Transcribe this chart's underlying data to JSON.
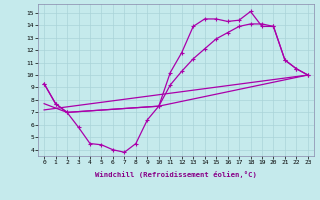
{
  "xlabel": "Windchill (Refroidissement éolien,°C)",
  "bg_color": "#c5eaec",
  "grid_color": "#aad4d8",
  "line_color": "#aa00aa",
  "xlim": [
    -0.5,
    23.5
  ],
  "ylim": [
    3.5,
    15.7
  ],
  "xticks": [
    0,
    1,
    2,
    3,
    4,
    5,
    6,
    7,
    8,
    9,
    10,
    11,
    12,
    13,
    14,
    15,
    16,
    17,
    18,
    19,
    20,
    21,
    22,
    23
  ],
  "yticks": [
    4,
    5,
    6,
    7,
    8,
    9,
    10,
    11,
    12,
    13,
    14,
    15
  ],
  "curve1_x": [
    0,
    1,
    2,
    3,
    4,
    5,
    6,
    7,
    8,
    9,
    10,
    11,
    12,
    13,
    14,
    15,
    16,
    17,
    18,
    19,
    20,
    21,
    22,
    23
  ],
  "curve1_y": [
    9.3,
    7.7,
    7.0,
    5.8,
    4.5,
    4.4,
    4.0,
    3.8,
    4.5,
    6.4,
    7.5,
    10.2,
    11.8,
    13.9,
    14.5,
    14.5,
    14.3,
    14.4,
    15.1,
    13.9,
    13.9,
    11.2,
    10.5,
    10.0
  ],
  "curve2_x": [
    0,
    1,
    2,
    10,
    11,
    12,
    13,
    14,
    15,
    16,
    17,
    18,
    19,
    20,
    21,
    22,
    23
  ],
  "curve2_y": [
    9.3,
    7.7,
    7.0,
    7.5,
    9.2,
    10.3,
    11.3,
    12.1,
    12.9,
    13.4,
    13.9,
    14.1,
    14.1,
    13.9,
    11.2,
    10.5,
    10.0
  ],
  "curve3_x": [
    0,
    2,
    10,
    23
  ],
  "curve3_y": [
    7.7,
    7.0,
    7.5,
    10.0
  ],
  "curve4_x": [
    0,
    23
  ],
  "curve4_y": [
    7.2,
    10.0
  ]
}
